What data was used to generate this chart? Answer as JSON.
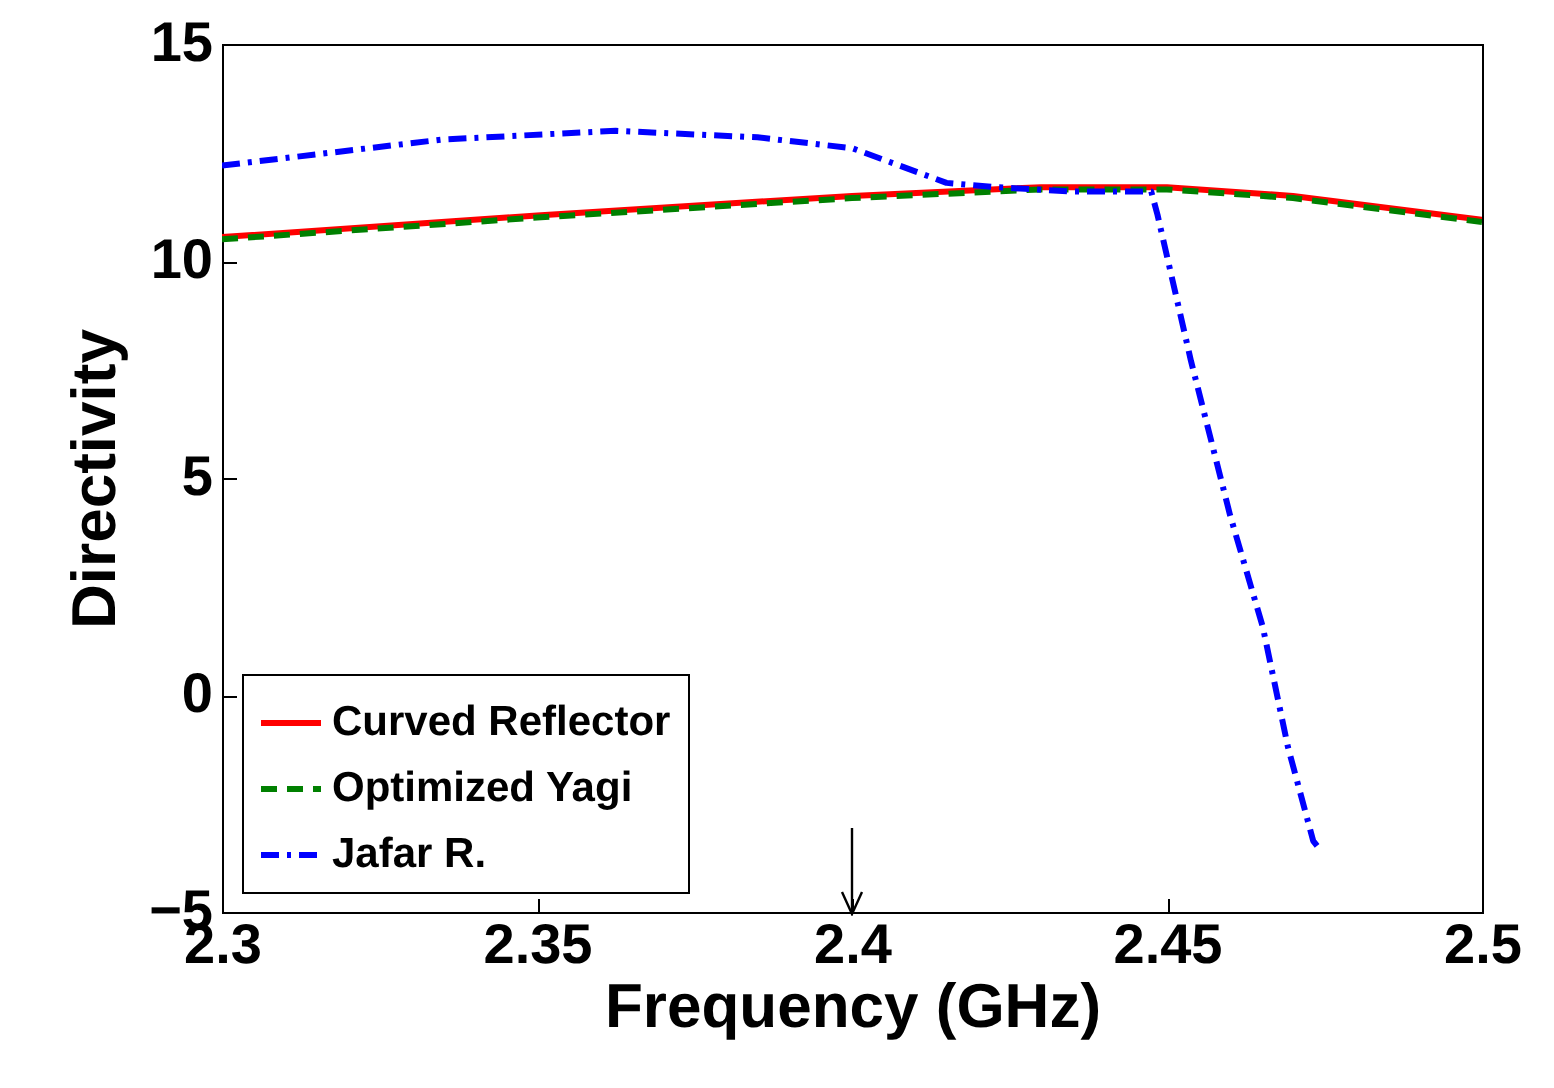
{
  "chart_data": {
    "type": "line",
    "xlabel": "Frequency (GHz)",
    "ylabel": "Directivity",
    "xlim": [
      2.3,
      2.5
    ],
    "ylim": [
      -5,
      15
    ],
    "xticks": [
      2.3,
      2.35,
      2.4,
      2.45,
      2.5
    ],
    "yticks": [
      -5,
      0,
      5,
      10,
      15
    ],
    "grid": false,
    "legend": "bottom left",
    "marker": "none",
    "series": [
      {
        "name": "Curved Reflector",
        "color": "#ff0000",
        "line_style": "solid",
        "x": [
          2.3,
          2.35,
          2.4,
          2.43,
          2.45,
          2.47,
          2.5
        ],
        "values": [
          10.55,
          11.05,
          11.5,
          11.7,
          11.7,
          11.5,
          10.95
        ]
      },
      {
        "name": "Optimized Yagi",
        "color": "#008000",
        "line_style": "dashed",
        "x": [
          2.3,
          2.35,
          2.4,
          2.43,
          2.45,
          2.47,
          2.5
        ],
        "values": [
          10.5,
          11.0,
          11.45,
          11.65,
          11.65,
          11.45,
          10.9
        ]
      },
      {
        "name": "Jafar R.",
        "color": "#0000ff",
        "line_style": "dashdot",
        "x": [
          2.3,
          2.335,
          2.3625,
          2.385,
          2.4,
          2.415,
          2.423,
          2.435,
          2.4475,
          2.4485,
          2.4538,
          2.46,
          2.4652,
          2.4692,
          2.4732,
          2.4745
        ],
        "values": [
          12.2,
          12.8,
          13.0,
          12.85,
          12.6,
          11.8,
          11.7,
          11.6,
          11.6,
          11.06,
          7.7,
          4.15,
          1.57,
          -1.2,
          -3.36,
          -3.6
        ]
      }
    ]
  }
}
